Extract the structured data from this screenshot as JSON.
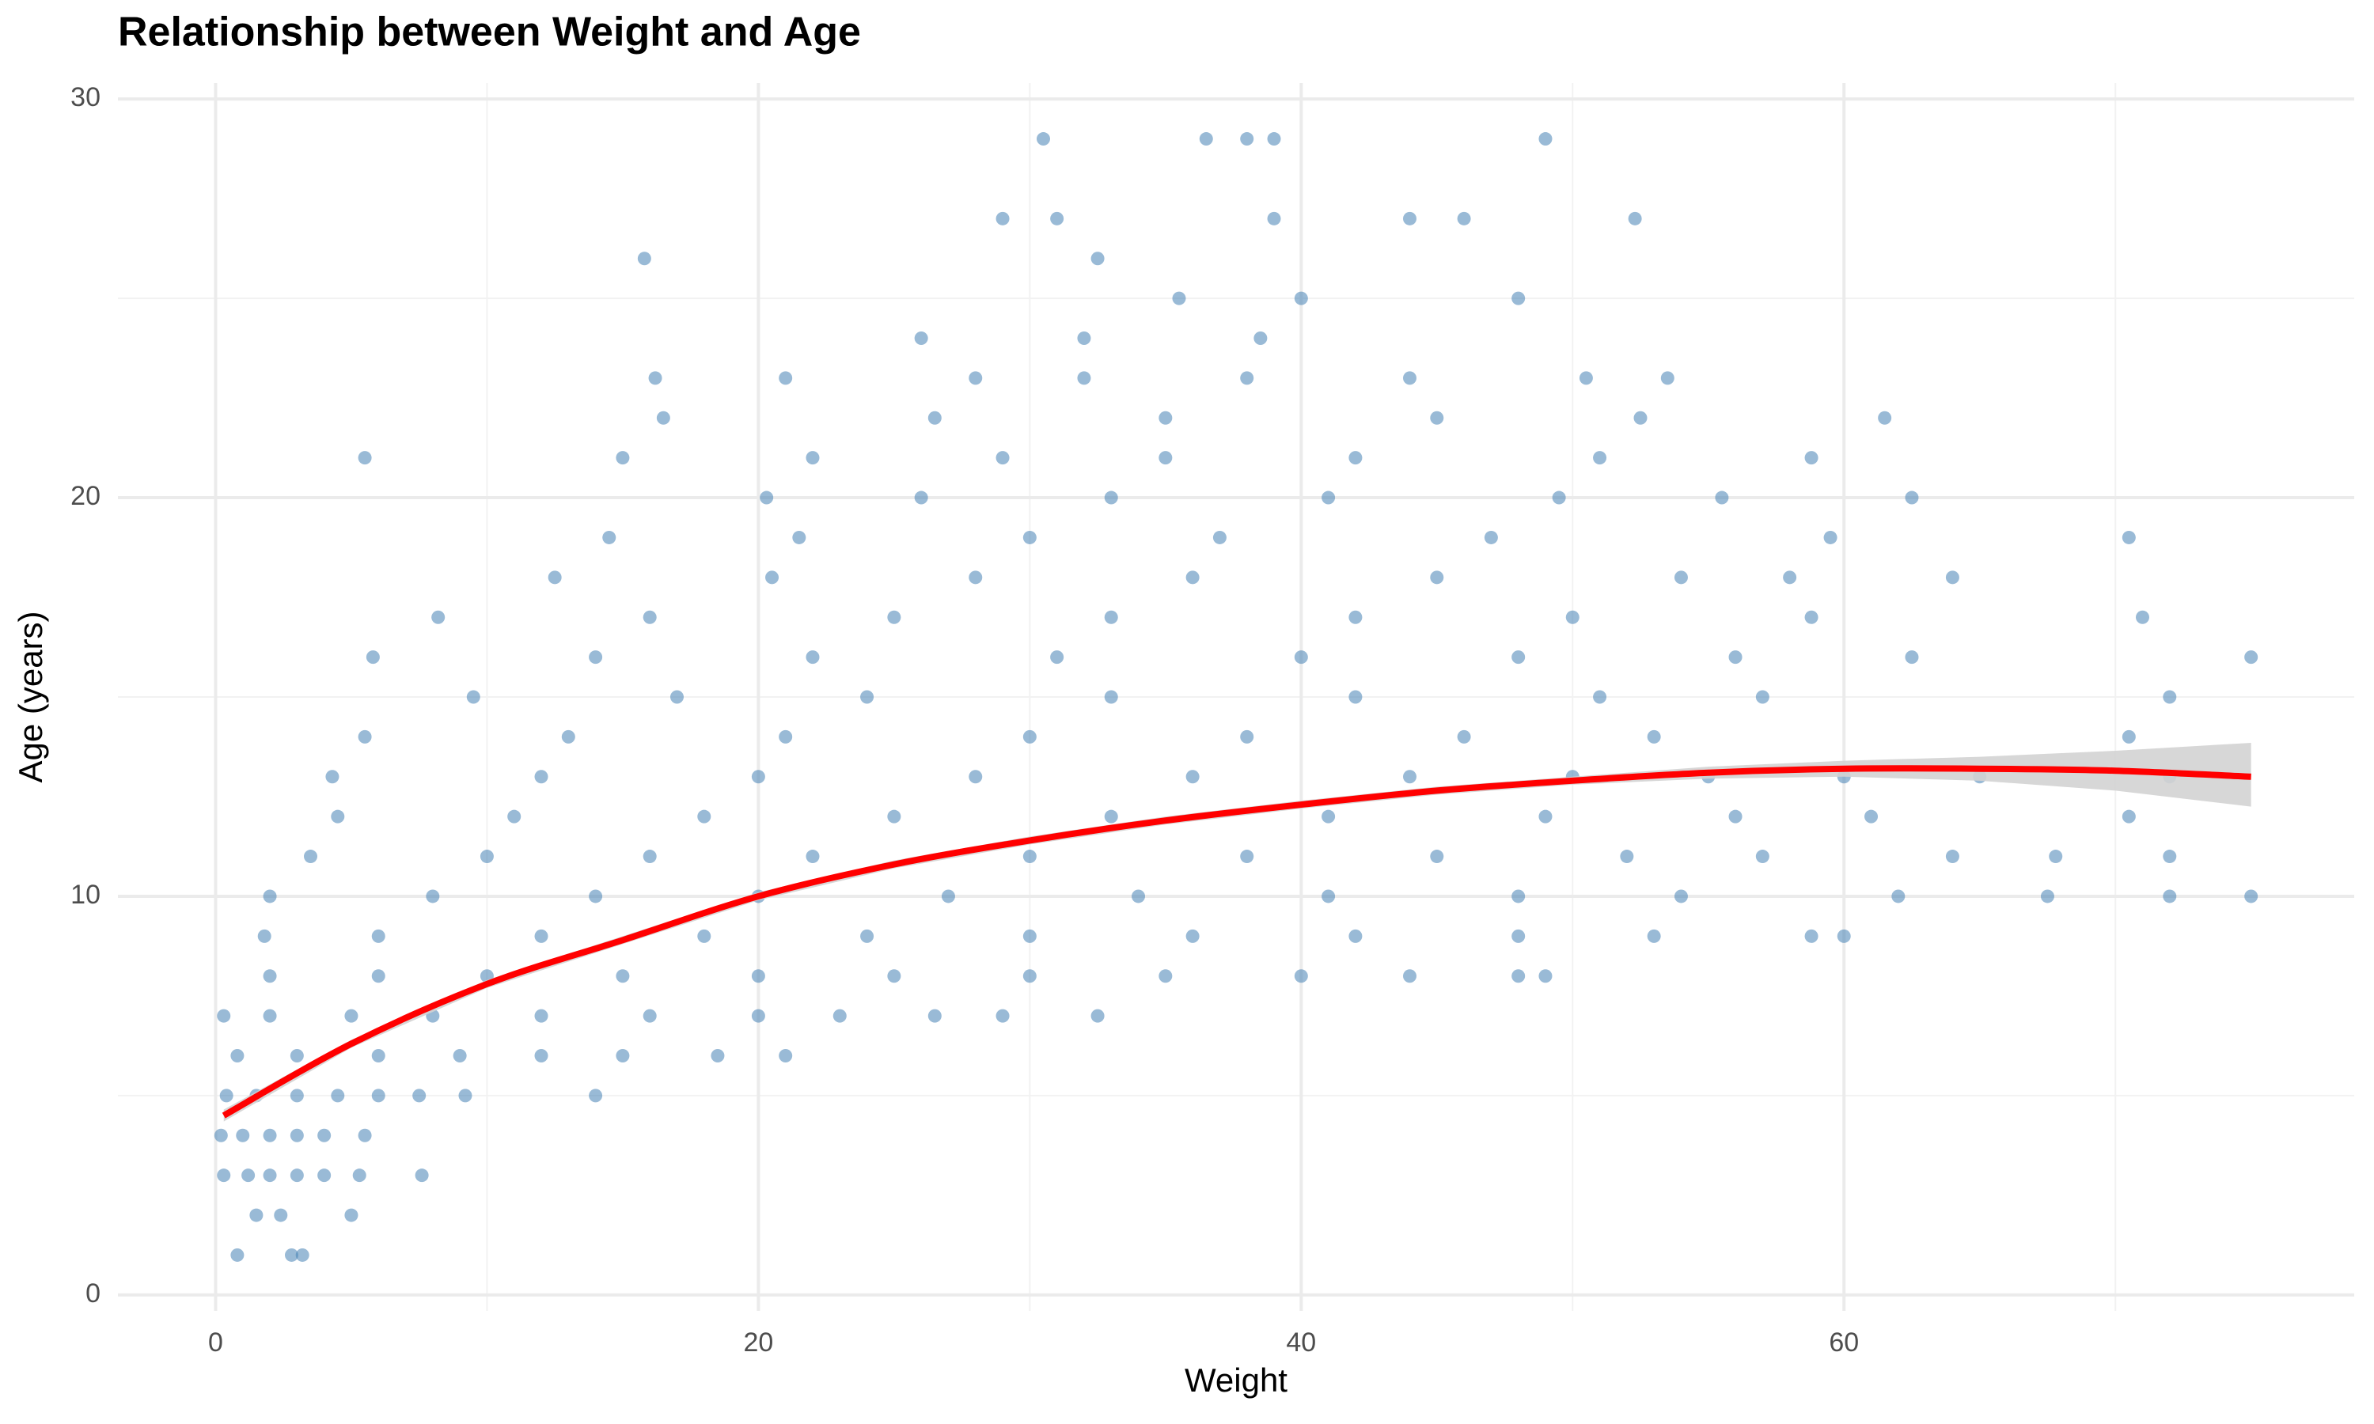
{
  "chart_data": {
    "type": "scatter",
    "title": "Relationship between Weight and Age",
    "x_label": "Weight",
    "y_label": "Age (years)",
    "color": "#4682b4",
    "grid": true,
    "xlim": [
      -3.6,
      78.8
    ],
    "ylim": [
      -0.4,
      30.4
    ],
    "xticks": [
      0,
      20,
      40,
      60
    ],
    "yticks": [
      0,
      10,
      20,
      30
    ],
    "xminor": [
      10,
      30,
      50,
      70
    ],
    "yminor": [
      5,
      15,
      25
    ],
    "x": [
      0.8,
      2.8,
      3.2,
      1.5,
      2.4,
      5,
      0.3,
      1.2,
      2,
      3,
      4,
      5.3,
      7.6,
      0.2,
      1,
      2,
      3,
      4,
      5.5,
      0.4,
      1.5,
      3,
      4.5,
      6,
      7.5,
      9.2,
      14,
      0.8,
      3,
      6,
      9,
      12,
      15,
      18.5,
      21,
      0.3,
      2,
      5,
      8,
      12,
      16,
      20,
      23,
      26.5,
      29,
      32.5,
      2,
      6,
      10,
      15,
      20,
      25,
      30,
      35,
      40,
      44,
      48,
      49,
      1.8,
      6,
      12,
      18,
      24,
      30,
      36,
      42,
      48,
      53,
      58.8,
      60,
      2,
      8,
      14,
      20,
      27,
      34,
      41,
      48,
      54,
      62,
      67.5,
      72,
      75,
      3.5,
      10,
      16,
      22,
      30,
      38,
      45,
      52,
      57,
      64,
      67.8,
      72,
      4.5,
      11,
      18,
      25,
      33,
      41,
      49,
      56,
      61,
      70.5,
      4.3,
      12,
      20,
      28,
      36,
      44,
      50,
      55,
      60,
      65,
      72,
      5.5,
      13,
      21,
      30,
      38,
      46,
      53,
      70.5,
      9.5,
      17,
      24,
      33,
      42,
      51,
      57,
      72,
      5.8,
      14,
      22,
      31,
      40,
      48,
      56,
      62.5,
      75,
      8.2,
      16,
      25,
      33,
      42,
      50,
      58.8,
      71,
      12.5,
      20.5,
      28,
      36,
      45,
      54,
      58,
      64,
      14.5,
      21.5,
      30,
      37,
      47,
      59.5,
      70.5,
      20.3,
      26,
      33,
      41,
      49.5,
      55.5,
      62.5,
      5.5,
      15,
      22,
      29,
      35,
      42,
      51,
      58.8,
      16.5,
      26.5,
      35,
      45,
      52.5,
      61.5,
      16.2,
      21,
      28,
      32,
      38,
      44,
      50.5,
      53.5,
      26,
      32,
      38.5,
      35.5,
      40,
      48,
      15.8,
      32.5,
      29,
      31,
      39,
      44,
      46,
      52.3,
      30.5,
      36.5,
      38,
      39,
      49
    ],
    "y": [
      1,
      1,
      1,
      2,
      2,
      2,
      3,
      3,
      3,
      3,
      3,
      3,
      3,
      4,
      4,
      4,
      4,
      4,
      4,
      5,
      5,
      5,
      5,
      5,
      5,
      5,
      5,
      6,
      6,
      6,
      6,
      6,
      6,
      6,
      6,
      7,
      7,
      7,
      7,
      7,
      7,
      7,
      7,
      7,
      7,
      7,
      8,
      8,
      8,
      8,
      8,
      8,
      8,
      8,
      8,
      8,
      8,
      8,
      9,
      9,
      9,
      9,
      9,
      9,
      9,
      9,
      9,
      9,
      9,
      9,
      10,
      10,
      10,
      10,
      10,
      10,
      10,
      10,
      10,
      10,
      10,
      10,
      10,
      11,
      11,
      11,
      11,
      11,
      11,
      11,
      11,
      11,
      11,
      11,
      11,
      12,
      12,
      12,
      12,
      12,
      12,
      12,
      12,
      12,
      12,
      13,
      13,
      13,
      13,
      13,
      13,
      13,
      13,
      13,
      13,
      13,
      14,
      14,
      14,
      14,
      14,
      14,
      14,
      14,
      15,
      15,
      15,
      15,
      15,
      15,
      15,
      15,
      16,
      16,
      16,
      16,
      16,
      16,
      16,
      16,
      16,
      17,
      17,
      17,
      17,
      17,
      17,
      17,
      17,
      18,
      18,
      18,
      18,
      18,
      18,
      18,
      18,
      19,
      19,
      19,
      19,
      19,
      19,
      19,
      20,
      20,
      20,
      20,
      20,
      20,
      20,
      21,
      21,
      21,
      21,
      21,
      21,
      21,
      21,
      22,
      22,
      22,
      22,
      22,
      22,
      23,
      23,
      23,
      23,
      23,
      23,
      23,
      23,
      24,
      24,
      24,
      25,
      25,
      25,
      26,
      26,
      27,
      27,
      27,
      27,
      27,
      27,
      29,
      29,
      29,
      29,
      29
    ],
    "smooth": {
      "color": "#ff0000",
      "band_color": "#d3d3d3",
      "x": [
        0.3,
        5,
        10,
        15,
        20,
        25,
        30,
        35,
        40,
        45,
        50,
        55,
        60,
        65,
        70,
        75
      ],
      "y": [
        4.5,
        6.3,
        7.8,
        8.9,
        10.0,
        10.8,
        11.4,
        11.9,
        12.3,
        12.65,
        12.9,
        13.1,
        13.2,
        13.2,
        13.15,
        13.0
      ],
      "lower": [
        4.35,
        6.2,
        7.7,
        8.8,
        9.9,
        10.7,
        11.3,
        11.8,
        12.2,
        12.55,
        12.8,
        12.95,
        13.0,
        12.9,
        12.65,
        12.25
      ],
      "upper": [
        4.65,
        6.4,
        7.9,
        9.0,
        10.1,
        10.9,
        11.5,
        12.0,
        12.4,
        12.75,
        13.0,
        13.25,
        13.4,
        13.5,
        13.65,
        13.85
      ]
    }
  }
}
